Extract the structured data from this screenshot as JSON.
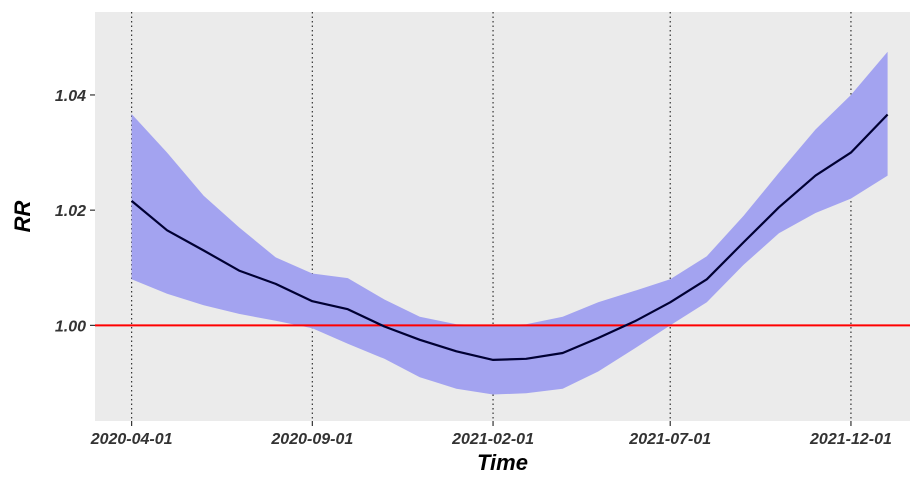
{
  "chart_data": {
    "type": "line",
    "xlabel": "Time",
    "ylabel": "RR",
    "x_ticks": [
      "2020-04-01",
      "2020-09-01",
      "2021-02-01",
      "2021-07-01",
      "2021-12-01"
    ],
    "y_ticks": [
      "1.00",
      "1.02",
      "1.04"
    ],
    "ylim": [
      0.9834,
      1.0544
    ],
    "xlim": [
      "2020-03-01",
      "2022-01-20"
    ],
    "grid": "vertical dotted lines at x ticks",
    "reference_line": {
      "y": 1.0,
      "color": "#ff0000"
    },
    "series": [
      {
        "x": [
          "2020-04-01",
          "2020-05-01",
          "2020-06-01",
          "2020-07-01",
          "2020-08-01",
          "2020-09-01",
          "2020-10-01",
          "2020-11-01",
          "2020-12-01",
          "2021-01-01",
          "2021-02-01",
          "2021-03-01",
          "2021-04-01",
          "2021-05-01",
          "2021-06-01",
          "2021-07-01",
          "2021-08-01",
          "2021-09-01",
          "2021-10-01",
          "2021-11-01",
          "2021-12-01",
          "2022-01-01"
        ],
        "values": [
          1.0216,
          1.0165,
          1.013,
          1.0095,
          1.0072,
          1.0042,
          1.0028,
          0.9998,
          0.9975,
          0.9955,
          0.994,
          0.9942,
          0.9952,
          0.9978,
          1.0007,
          1.004,
          1.008,
          1.0144,
          1.0205,
          1.026,
          1.03,
          1.0366
        ],
        "lower": [
          1.008,
          1.0055,
          1.0035,
          1.002,
          1.0008,
          0.9995,
          0.9968,
          0.9942,
          0.991,
          0.989,
          0.988,
          0.9882,
          0.989,
          0.992,
          0.996,
          1.0,
          1.004,
          1.0105,
          1.016,
          1.0195,
          1.022,
          1.026
        ],
        "upper": [
          1.0367,
          1.03,
          1.0225,
          1.017,
          1.0118,
          1.009,
          1.0082,
          1.0045,
          1.0015,
          1.0002,
          1.0,
          1.0002,
          1.0015,
          1.004,
          1.006,
          1.008,
          1.012,
          1.019,
          1.0265,
          1.034,
          1.04,
          1.0475
        ]
      }
    ],
    "colors": {
      "panel_background": "#ebebeb",
      "band": "#a3a3f0",
      "line": "#000033",
      "reference_line": "#ff0000",
      "grid": "#333333"
    }
  }
}
